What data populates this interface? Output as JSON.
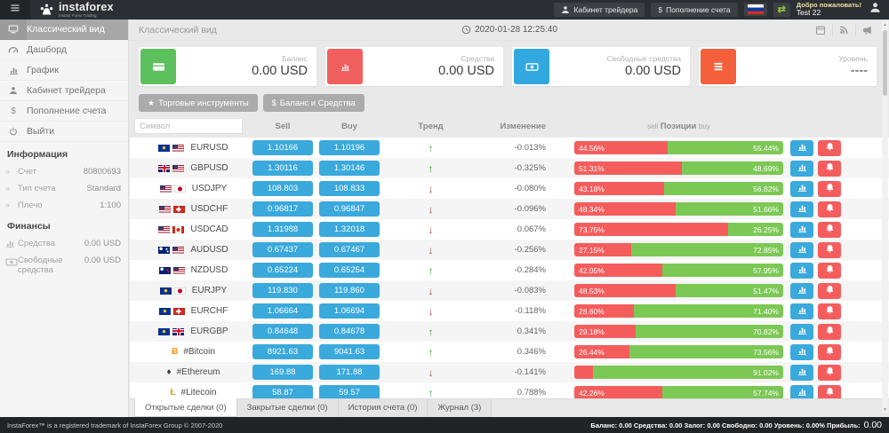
{
  "header": {
    "brand": "instaforex",
    "tagline": "Instant Forex Trading",
    "cabinet_button": "Кабинет трейдера",
    "deposit_button": "Пополнение счета",
    "deposit_icon": "$",
    "welcome": "Добро пожаловать!",
    "username": "Test 22"
  },
  "sidebar": {
    "menu": [
      {
        "label": "Классический вид",
        "icon": "desktop",
        "active": true
      },
      {
        "label": "Дашборд",
        "icon": "gauge",
        "active": false
      },
      {
        "label": "График",
        "icon": "chart",
        "active": false
      },
      {
        "label": "Кабинет трейдера",
        "icon": "user",
        "active": false
      },
      {
        "label": "Пополнение счета",
        "icon": "dollar",
        "active": false
      },
      {
        "label": "Выйти",
        "icon": "power",
        "active": false
      }
    ],
    "info_title": "Информация",
    "info": [
      {
        "label": "Счет",
        "value": "80800693"
      },
      {
        "label": "Тип счета",
        "value": "Standard"
      },
      {
        "label": "Плечо",
        "value": "1:100"
      }
    ],
    "finance_title": "Финансы",
    "finance": [
      {
        "label": "Средства",
        "value": "0.00 USD",
        "icon": "chart"
      },
      {
        "label": "Свободные средства",
        "value": "0.00 USD",
        "icon": "banknote"
      }
    ]
  },
  "main": {
    "title": "Классический вид",
    "datetime": "2020-01-28 12:25:40",
    "head_icons": [
      {
        "name": "calendar-icon",
        "icon": "calendar"
      },
      {
        "name": "rss-icon",
        "icon": "rss"
      },
      {
        "name": "megaphone-icon",
        "icon": "megaphone"
      }
    ],
    "cards": [
      {
        "label": "Баланс",
        "value": "0.00 USD",
        "icon": "credit-card",
        "color": "#5cc05c"
      },
      {
        "label": "Средства",
        "value": "0.00 USD",
        "icon": "chart",
        "color": "#f25f5f"
      },
      {
        "label": "Свободные средства",
        "value": "0.00 USD",
        "icon": "banknote",
        "color": "#31a9e0"
      },
      {
        "label": "Уровень",
        "value": "----",
        "icon": "menu3",
        "color": "#f4603c"
      }
    ],
    "toolbar": [
      {
        "label": "Торговые инструменты",
        "icon": "star"
      },
      {
        "label": "Баланс и Средства",
        "icon": "dollar"
      }
    ],
    "table": {
      "filter_placeholder": "Символ",
      "headers": {
        "sell": "Sell",
        "buy": "Buy",
        "trend": "Тренд",
        "change": "Изменение",
        "pos_sell": "sell",
        "positions": "Позиции",
        "pos_buy": "buy"
      },
      "rows": [
        {
          "symbol": "EURUSD",
          "icons": [
            "eu",
            "us"
          ],
          "sell": "1.10166",
          "buy": "1.10196",
          "trend": "up",
          "change": "-0.013%",
          "sell_pct": 44.56,
          "sell_label": "44.56%",
          "buy_label": "55.44%"
        },
        {
          "symbol": "GBPUSD",
          "icons": [
            "gb",
            "us"
          ],
          "sell": "1.30116",
          "buy": "1.30146",
          "trend": "up",
          "change": "-0.325%",
          "sell_pct": 51.31,
          "sell_label": "51.31%",
          "buy_label": "48.69%"
        },
        {
          "symbol": "USDJPY",
          "icons": [
            "us",
            "jp"
          ],
          "sell": "108.803",
          "buy": "108.833",
          "trend": "down",
          "change": "-0.080%",
          "sell_pct": 43.18,
          "sell_label": "43.18%",
          "buy_label": "56.82%"
        },
        {
          "symbol": "USDCHF",
          "icons": [
            "us",
            "ch"
          ],
          "sell": "0.96817",
          "buy": "0.96847",
          "trend": "down",
          "change": "-0.096%",
          "sell_pct": 48.34,
          "sell_label": "48.34%",
          "buy_label": "51.66%"
        },
        {
          "symbol": "USDCAD",
          "icons": [
            "us",
            "ca"
          ],
          "sell": "1.31988",
          "buy": "1.32018",
          "trend": "down",
          "change": "0.067%",
          "sell_pct": 73.75,
          "sell_label": "73.75%",
          "buy_label": "26.25%"
        },
        {
          "symbol": "AUDUSD",
          "icons": [
            "au",
            "us"
          ],
          "sell": "0.67437",
          "buy": "0.67467",
          "trend": "down",
          "change": "-0.256%",
          "sell_pct": 27.15,
          "sell_label": "27.15%",
          "buy_label": "72.85%"
        },
        {
          "symbol": "NZDUSD",
          "icons": [
            "nz",
            "us"
          ],
          "sell": "0.65224",
          "buy": "0.65254",
          "trend": "up",
          "change": "-0.284%",
          "sell_pct": 42.05,
          "sell_label": "42.05%",
          "buy_label": "57.95%"
        },
        {
          "symbol": "EURJPY",
          "icons": [
            "eu",
            "jp"
          ],
          "sell": "119.830",
          "buy": "119.860",
          "trend": "down",
          "change": "-0.083%",
          "sell_pct": 48.53,
          "sell_label": "48.53%",
          "buy_label": "51.47%"
        },
        {
          "symbol": "EURCHF",
          "icons": [
            "eu",
            "ch"
          ],
          "sell": "1.06664",
          "buy": "1.06694",
          "trend": "down",
          "change": "-0.118%",
          "sell_pct": 28.6,
          "sell_label": "28.60%",
          "buy_label": "71.40%"
        },
        {
          "symbol": "EURGBP",
          "icons": [
            "eu",
            "gb"
          ],
          "sell": "0.84648",
          "buy": "0.84678",
          "trend": "up",
          "change": "0.341%",
          "sell_pct": 29.18,
          "sell_label": "29.18%",
          "buy_label": "70.82%"
        },
        {
          "symbol": "#Bitcoin",
          "icons": [
            "btc"
          ],
          "sell": "8921.63",
          "buy": "9041.63",
          "trend": "up",
          "change": "0.346%",
          "sell_pct": 26.44,
          "sell_label": "26.44%",
          "buy_label": "73.56%"
        },
        {
          "symbol": "#Ethereum",
          "icons": [
            "eth"
          ],
          "sell": "169.88",
          "buy": "171.88",
          "trend": "down",
          "change": "-0.141%",
          "sell_pct": 8.98,
          "sell_label": "",
          "buy_label": "91.02%"
        },
        {
          "symbol": "#Litecoin",
          "icons": [
            "ltc"
          ],
          "sell": "58.87",
          "buy": "59.57",
          "trend": "up",
          "change": "0.788%",
          "sell_pct": 42.26,
          "sell_label": "42.26%",
          "buy_label": "57.74%"
        },
        {
          "symbol": "",
          "icons": [],
          "sell": "",
          "buy": "",
          "trend": "",
          "change": "",
          "sell_pct": 2.5,
          "sell_label": "",
          "buy_label": ""
        }
      ]
    },
    "tabs": [
      {
        "label": "Открытые сделки (0)",
        "active": true
      },
      {
        "label": "Закрытые сделки (0)",
        "active": false
      },
      {
        "label": "История счета (0)",
        "active": false
      },
      {
        "label": "Журнал (3)",
        "active": false
      }
    ]
  },
  "footer": {
    "left": "InstaForex™ is a registered trademark of InstaForex Group © 2007-2020",
    "stats": "Баланс: 0.00  Средства: 0.00  Залог: 0.00  Свободно: 0.00  Уровень: 0.00%  Прибыль:",
    "profit": "0.00"
  }
}
